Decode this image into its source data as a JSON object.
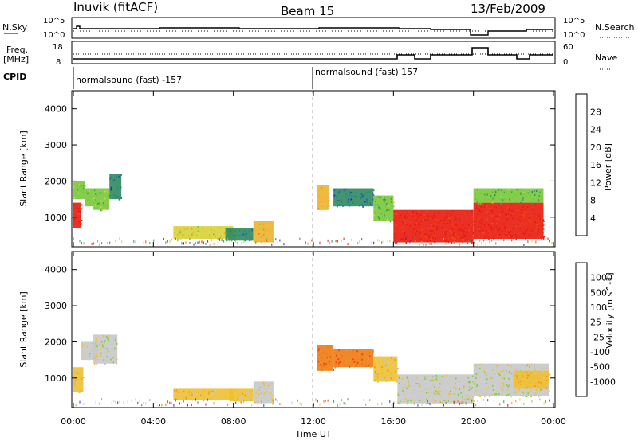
{
  "header": {
    "station": "Inuvik (fitACF)",
    "beam": "Beam 15",
    "date": "13/Feb/2009"
  },
  "nsky_panel": {
    "left_label": "N.Sky",
    "left_ticks": [
      "10^5",
      "10^0"
    ],
    "right_label": "N.Search",
    "right_ticks": [
      "10^5",
      "10^0"
    ]
  },
  "freq_panel": {
    "left_label_1": "Freq.",
    "left_label_2": "[MHz]",
    "left_ticks": [
      "18",
      "8"
    ],
    "right_label": "Nave",
    "right_ticks": [
      "60",
      "0"
    ]
  },
  "cpid": {
    "label": "CPID",
    "segments": [
      {
        "label": "normalsound (fast) -157",
        "start_hour": 0
      },
      {
        "label": "normalsound (fast) 157",
        "start_hour": 12
      }
    ]
  },
  "x_axis": {
    "title": "Time UT",
    "ticks": [
      "00:00",
      "04:00",
      "08:00",
      "12:00",
      "16:00",
      "20:00",
      "00:00"
    ],
    "tick_hours": [
      0,
      4,
      8,
      12,
      16,
      20,
      24
    ]
  },
  "power_panel": {
    "ylabel": "Slant Range [km]",
    "yticks": [
      "1000",
      "2000",
      "3000",
      "4000"
    ],
    "colorbar_title": "Power [dB]",
    "colorbar_ticks": [
      "4",
      "8",
      "12",
      "16",
      "20",
      "24",
      "28"
    ],
    "colorbar_colors": [
      "#1f1fe0",
      "#2858c0",
      "#2f8a63",
      "#3ca64e",
      "#78c83a",
      "#d8d23a",
      "#f0b030",
      "#f07a18",
      "#ee4816",
      "#e81a0c"
    ]
  },
  "velocity_panel": {
    "ylabel": "Slant Range [km]",
    "yticks": [
      "1000",
      "2000",
      "3000",
      "4000"
    ],
    "colorbar_title": "Velocity [m s^-1]",
    "colorbar_ticks": [
      "1000",
      "500",
      "100",
      "25",
      "-25",
      "-100",
      "-500",
      "-1000"
    ],
    "colorbar_colors": [
      "#2a44c8",
      "#3a6ea8",
      "#3c9a4a",
      "#7ad03a",
      "#c8c8c8",
      "#f0c030",
      "#f09818",
      "#f07a14",
      "#ee4010",
      "#e81208"
    ]
  },
  "chart_data": {
    "type": "heatmap",
    "title": "Inuvik (fitACF) Beam 15 13/Feb/2009",
    "xlabel": "Time UT",
    "ylabel": "Slant Range [km]",
    "xlim": [
      0,
      24
    ],
    "ylim": [
      180,
      4500
    ],
    "panels": [
      {
        "name": "Power [dB]",
        "zlim": [
          0,
          30
        ],
        "regions": [
          {
            "t": [
              0.0,
              0.4
            ],
            "r": [
              700,
              1400
            ],
            "value": 28
          },
          {
            "t": [
              0.0,
              0.6
            ],
            "r": [
              1500,
              2000
            ],
            "value": 14
          },
          {
            "t": [
              0.6,
              1.0
            ],
            "r": [
              1300,
              1800
            ],
            "value": 12
          },
          {
            "t": [
              1.0,
              1.8
            ],
            "r": [
              1200,
              1800
            ],
            "value": 14
          },
          {
            "t": [
              1.8,
              2.4
            ],
            "r": [
              1500,
              2200
            ],
            "value": 6
          },
          {
            "t": [
              5.0,
              8.0
            ],
            "r": [
              400,
              750
            ],
            "value": 16
          },
          {
            "t": [
              7.6,
              9.0
            ],
            "r": [
              350,
              700
            ],
            "value": 8
          },
          {
            "t": [
              9.0,
              10.0
            ],
            "r": [
              300,
              900
            ],
            "value": 18
          },
          {
            "t": [
              12.2,
              12.8
            ],
            "r": [
              1200,
              1900
            ],
            "value": 18
          },
          {
            "t": [
              13.0,
              15.0
            ],
            "r": [
              1300,
              1800
            ],
            "value": 6
          },
          {
            "t": [
              15.0,
              16.0
            ],
            "r": [
              900,
              1600
            ],
            "value": 12
          },
          {
            "t": [
              16.0,
              20.0
            ],
            "r": [
              300,
              1200
            ],
            "value": 28
          },
          {
            "t": [
              20.0,
              23.5
            ],
            "r": [
              400,
              1400
            ],
            "value": 28
          },
          {
            "t": [
              20.0,
              23.5
            ],
            "r": [
              1400,
              1800
            ],
            "value": 12
          }
        ]
      },
      {
        "name": "Velocity [m s^-1]",
        "zlim": [
          -1000,
          1000
        ],
        "regions": [
          {
            "t": [
              0.0,
              0.5
            ],
            "r": [
              600,
              1300
            ],
            "value": 100
          },
          {
            "t": [
              0.4,
              1.2
            ],
            "r": [
              1500,
              2000
            ],
            "value": -100
          },
          {
            "t": [
              1.0,
              2.2
            ],
            "r": [
              1400,
              2200
            ],
            "value": -100
          },
          {
            "t": [
              5.0,
              8.0
            ],
            "r": [
              400,
              700
            ],
            "value": 100
          },
          {
            "t": [
              7.8,
              9.0
            ],
            "r": [
              350,
              700
            ],
            "value": 25
          },
          {
            "t": [
              9.0,
              10.0
            ],
            "r": [
              300,
              900
            ],
            "value": -25
          },
          {
            "t": [
              12.2,
              13.0
            ],
            "r": [
              1200,
              1900
            ],
            "value": 500
          },
          {
            "t": [
              13.0,
              15.0
            ],
            "r": [
              1300,
              1800
            ],
            "value": 500
          },
          {
            "t": [
              15.0,
              16.2
            ],
            "r": [
              900,
              1600
            ],
            "value": 100
          },
          {
            "t": [
              16.2,
              20.0
            ],
            "r": [
              300,
              1100
            ],
            "value": -100
          },
          {
            "t": [
              20.0,
              23.8
            ],
            "r": [
              500,
              1400
            ],
            "value": -100
          },
          {
            "t": [
              22.0,
              23.8
            ],
            "r": [
              700,
              1200
            ],
            "value": 100
          }
        ]
      }
    ]
  }
}
